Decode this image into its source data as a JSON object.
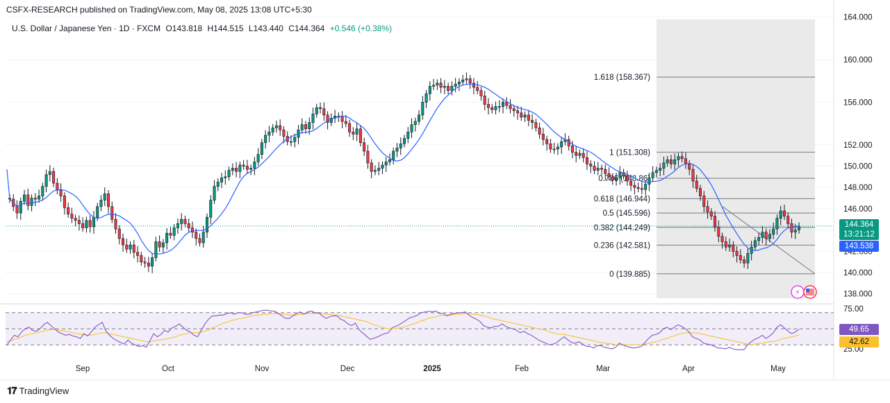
{
  "header": {
    "published": "CSFX-RESEARCH published on TradingView.com, May 08, 2025 13:08 UTC+5:30",
    "symbol": "U.S. Dollar / Japanese Yen · 1D · FXCM",
    "open": "O143.818",
    "high": "H144.515",
    "low": "L143.440",
    "close": "C144.364",
    "change": "+0.546 (+0.38%)"
  },
  "footer": {
    "brand": "TradingView",
    "logo": "tradingview-logo-icon"
  },
  "tags": {
    "last_price": "144.364",
    "countdown": "13:21:12",
    "ma_value": "143.538",
    "rsi_value": "49.65",
    "rsi_ma_value": "42.62"
  },
  "colors": {
    "up": "#089981",
    "down": "#f23645",
    "ma": "#2962ff",
    "rsi": "#7e57c2",
    "rsi_ma": "#fbc02d",
    "fib_box": "#e6e6e6",
    "fib_line": "#787b86"
  },
  "chart_data": {
    "type": "candlestick",
    "symbol": "USDJPY",
    "timeframe": "1D",
    "price_axis": {
      "ticks": [
        138.0,
        140.0,
        142.0,
        144.0,
        146.0,
        148.0,
        150.0,
        152.0,
        156.0,
        160.0,
        164.0
      ],
      "range": [
        136.8,
        164.3
      ]
    },
    "time_axis": {
      "labels": [
        "Sep",
        "Oct",
        "Nov",
        "Dec",
        "2025",
        "Feb",
        "Mar",
        "Apr",
        "May"
      ]
    },
    "bars_close": [
      146.9,
      146.2,
      145.6,
      146.7,
      147.3,
      146.3,
      147.0,
      146.9,
      147.2,
      148.1,
      149.2,
      149.5,
      148.4,
      147.8,
      147.2,
      146.1,
      145.5,
      145.1,
      144.9,
      144.6,
      144.2,
      144.9,
      144.3,
      145.2,
      146.2,
      146.8,
      147.4,
      146.2,
      145.0,
      144.1,
      143.2,
      142.6,
      142.2,
      142.6,
      141.9,
      141.6,
      141.0,
      140.9,
      140.6,
      141.4,
      142.9,
      142.4,
      142.8,
      143.7,
      143.5,
      144.2,
      144.6,
      145.0,
      144.6,
      144.2,
      143.8,
      143.2,
      142.8,
      143.8,
      145.2,
      146.8,
      148.1,
      148.5,
      148.9,
      149.0,
      149.6,
      149.8,
      149.5,
      150.1,
      150.0,
      149.7,
      149.8,
      150.4,
      151.1,
      152.2,
      152.9,
      153.2,
      153.6,
      153.8,
      153.4,
      152.8,
      152.3,
      152.3,
      152.7,
      153.4,
      153.9,
      153.5,
      154.1,
      154.9,
      155.5,
      155.4,
      154.8,
      154.1,
      154.5,
      154.7,
      154.7,
      154.2,
      154.0,
      153.2,
      153.0,
      153.5,
      152.2,
      151.4,
      150.3,
      149.5,
      149.6,
      149.8,
      150.1,
      150.4,
      150.6,
      151.4,
      151.7,
      152.1,
      152.6,
      153.2,
      153.9,
      154.2,
      154.8,
      156.0,
      156.8,
      157.5,
      157.6,
      157.8,
      157.4,
      157.5,
      157.1,
      157.5,
      157.7,
      157.9,
      158.1,
      158.2,
      157.8,
      157.4,
      157.1,
      156.6,
      155.8,
      155.5,
      155.3,
      155.6,
      155.6,
      156.0,
      155.7,
      155.4,
      155.2,
      155.0,
      154.6,
      154.8,
      154.3,
      154.1,
      153.6,
      153.0,
      152.5,
      152.1,
      151.6,
      151.6,
      151.8,
      152.3,
      152.5,
      151.9,
      151.3,
      151.0,
      151.2,
      150.8,
      150.2,
      150.0,
      149.6,
      149.8,
      149.7,
      149.3,
      149.0,
      148.7,
      148.9,
      149.4,
      149.1,
      148.6,
      148.2,
      148.0,
      147.9,
      147.8,
      148.3,
      148.9,
      149.4,
      149.6,
      149.8,
      150.3,
      150.6,
      150.2,
      150.6,
      150.9,
      150.7,
      150.2,
      149.7,
      148.6,
      147.9,
      147.2,
      146.2,
      145.7,
      145.3,
      144.3,
      143.4,
      142.9,
      142.4,
      142.6,
      142.0,
      141.6,
      141.2,
      140.9,
      141.8,
      142.4,
      143.0,
      143.3,
      143.8,
      143.2,
      143.6,
      144.1,
      145.1,
      145.8,
      145.3,
      144.6,
      143.8,
      144.0,
      144.364
    ],
    "ma": {
      "name": "",
      "last": 143.538
    },
    "fibonacci": [
      {
        "level": "1.618",
        "price": 158.367,
        "label": "1.618 (158.367)"
      },
      {
        "level": "1",
        "price": 151.308,
        "label": "1 (151.308)"
      },
      {
        "level": "0.786",
        "price": 148.86,
        "label": "0.786 (148.86)"
      },
      {
        "level": "0.618",
        "price": 146.944,
        "label": "0.618 (146.944)"
      },
      {
        "level": "0.5",
        "price": 145.596,
        "label": "0.5 (145.596)"
      },
      {
        "level": "0.382",
        "price": 144.249,
        "label": "0.382 (144.249)"
      },
      {
        "level": "0.236",
        "price": 142.581,
        "label": "0.236 (142.581)"
      },
      {
        "level": "0",
        "price": 139.885,
        "label": "0 (139.885)"
      }
    ],
    "rsi": {
      "axis_ticks": [
        75.0,
        25.0
      ],
      "range": [
        20,
        80
      ],
      "last": 49.65,
      "ma_last": 42.62,
      "values": [
        30,
        36,
        42,
        40,
        46,
        50,
        52,
        48,
        47,
        50,
        55,
        58,
        54,
        50,
        46,
        44,
        42,
        43,
        41,
        40,
        38,
        44,
        41,
        46,
        52,
        55,
        58,
        47,
        42,
        38,
        35,
        33,
        31,
        36,
        32,
        30,
        28,
        29,
        27,
        35,
        44,
        40,
        43,
        48,
        46,
        51,
        53,
        56,
        52,
        48,
        46,
        42,
        40,
        48,
        56,
        62,
        66,
        66,
        67,
        67,
        69,
        70,
        68,
        70,
        70,
        68,
        68,
        70,
        71,
        72,
        73,
        73,
        72,
        72,
        69,
        66,
        63,
        63,
        66,
        69,
        71,
        68,
        71,
        72,
        70,
        70,
        66,
        63,
        65,
        66,
        66,
        62,
        60,
        56,
        54,
        57,
        49,
        45,
        41,
        37,
        38,
        40,
        42,
        44,
        45,
        51,
        53,
        55,
        58,
        61,
        64,
        65,
        67,
        70,
        71,
        72,
        71,
        72,
        69,
        69,
        66,
        68,
        69,
        70,
        70,
        71,
        67,
        64,
        62,
        59,
        54,
        52,
        51,
        53,
        53,
        56,
        53,
        51,
        50,
        48,
        45,
        47,
        44,
        42,
        39,
        36,
        34,
        32,
        30,
        31,
        33,
        37,
        40,
        36,
        33,
        32,
        34,
        31,
        28,
        28,
        26,
        29,
        29,
        27,
        26,
        25,
        27,
        32,
        30,
        28,
        27,
        26,
        27,
        28,
        33,
        38,
        42,
        43,
        45,
        50,
        52,
        49,
        52,
        55,
        53,
        50,
        46,
        40,
        38,
        36,
        32,
        31,
        30,
        28,
        26,
        26,
        25,
        27,
        25,
        24,
        24,
        24,
        30,
        34,
        37,
        39,
        42,
        38,
        41,
        45,
        52,
        55,
        51,
        47,
        44,
        46,
        49.65
      ],
      "ma": [
        34,
        35,
        37,
        38,
        40,
        42,
        43,
        44,
        45,
        46,
        47,
        48,
        49,
        49,
        48,
        48,
        47,
        46,
        45,
        44,
        43,
        43,
        42,
        42,
        43,
        44,
        45,
        45,
        44,
        43,
        42,
        41,
        40,
        39,
        38,
        37,
        36,
        35,
        34,
        34,
        35,
        36,
        36,
        37,
        38,
        39,
        40,
        42,
        43,
        44,
        45,
        45,
        45,
        46,
        47,
        49,
        51,
        53,
        55,
        57,
        58,
        60,
        61,
        62,
        63,
        64,
        65,
        66,
        67,
        67,
        68,
        68,
        69,
        69,
        69,
        68,
        68,
        67,
        67,
        67,
        68,
        68,
        69,
        69,
        69,
        69,
        69,
        68,
        68,
        67,
        67,
        66,
        65,
        64,
        63,
        62,
        61,
        60,
        59,
        57,
        55,
        54,
        52,
        51,
        50,
        50,
        50,
        51,
        52,
        53,
        55,
        56,
        58,
        60,
        61,
        63,
        64,
        65,
        66,
        67,
        67,
        67,
        68,
        68,
        68,
        69,
        69,
        68,
        68,
        67,
        66,
        65,
        63,
        62,
        61,
        60,
        59,
        58,
        57,
        56,
        55,
        54,
        53,
        52,
        51,
        50,
        49,
        48,
        46,
        45,
        44,
        43,
        43,
        42,
        41,
        40,
        39,
        38,
        37,
        36,
        35,
        34,
        33,
        32,
        32,
        31,
        30,
        30,
        30,
        30,
        30,
        30,
        30,
        30,
        31,
        32,
        33,
        34,
        35,
        37,
        38,
        40,
        41,
        43,
        44,
        45,
        45,
        45,
        45,
        44,
        43,
        42,
        41,
        40,
        39,
        38,
        37,
        36,
        35,
        34,
        33,
        32,
        31,
        30,
        31,
        32,
        32,
        33,
        34,
        34,
        35,
        37,
        38,
        39,
        40,
        41,
        42.62
      ]
    }
  }
}
